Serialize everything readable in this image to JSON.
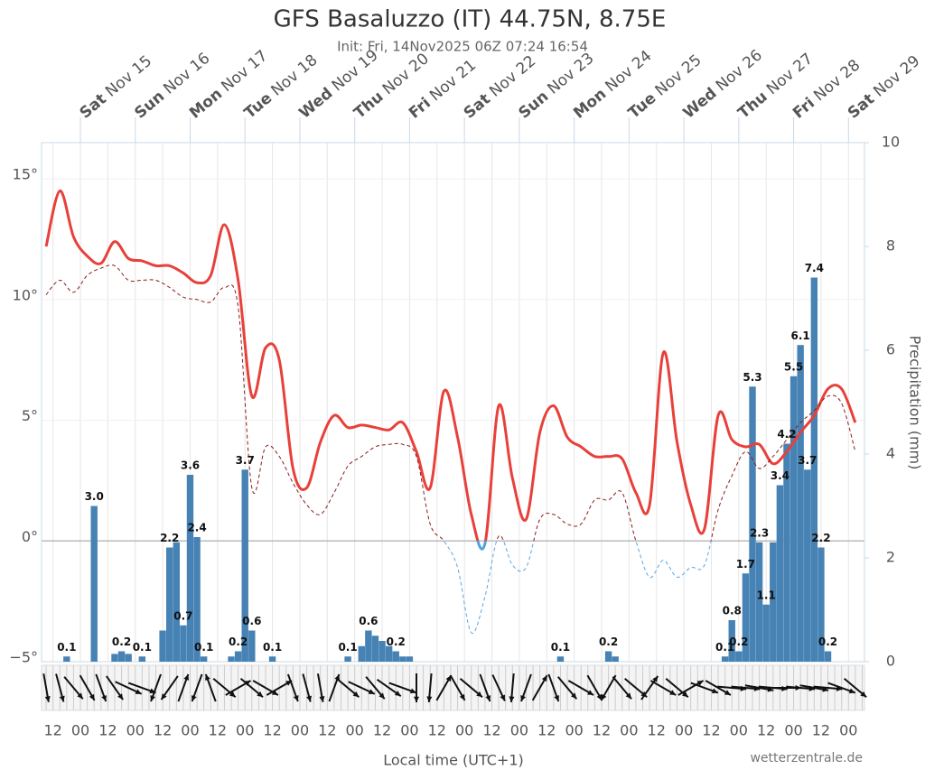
{
  "chart_data": {
    "type": "meteogram",
    "title": "GFS Basaluzzo (IT) 44.75N, 8.75E",
    "subtitle": "Init: Fri, 14Nov2025 06Z 07:24 16:54",
    "x_label": "Local time (UTC+1)",
    "y2_label": "Precipitation (mm)",
    "credit": "wetterzentrale.de",
    "xlim": [
      "2025-11-14T07:00",
      "2025-11-29T07:00"
    ],
    "ylim": [
      -5,
      16.5
    ],
    "y2lim": [
      0,
      10
    ],
    "grid": true,
    "yticks": [
      {
        "value": 15,
        "label": "15°"
      },
      {
        "value": 10,
        "label": "10°"
      },
      {
        "value": 5,
        "label": "5°"
      },
      {
        "value": 0,
        "label": "0°"
      },
      {
        "value": -5,
        "label": "−5°"
      }
    ],
    "y2ticks": [
      0,
      2,
      4,
      6,
      8,
      10
    ],
    "top_xticks": [
      {
        "value": "2025-11-15T00:00",
        "label": "Sat Nov 15"
      },
      {
        "value": "2025-11-16T00:00",
        "label": "Sun Nov 16"
      },
      {
        "value": "2025-11-17T00:00",
        "label": "Mon Nov 17"
      },
      {
        "value": "2025-11-18T00:00",
        "label": "Tue Nov 18"
      },
      {
        "value": "2025-11-19T00:00",
        "label": "Wed Nov 19"
      },
      {
        "value": "2025-11-20T00:00",
        "label": "Thu Nov 20"
      },
      {
        "value": "2025-11-21T00:00",
        "label": "Fri Nov 21"
      },
      {
        "value": "2025-11-22T00:00",
        "label": "Sat Nov 22"
      },
      {
        "value": "2025-11-23T00:00",
        "label": "Sun Nov 23"
      },
      {
        "value": "2025-11-24T00:00",
        "label": "Mon Nov 24"
      },
      {
        "value": "2025-11-25T00:00",
        "label": "Tue Nov 25"
      },
      {
        "value": "2025-11-26T00:00",
        "label": "Wed Nov 26"
      },
      {
        "value": "2025-11-27T00:00",
        "label": "Thu Nov 27"
      },
      {
        "value": "2025-11-28T00:00",
        "label": "Fri Nov 28"
      },
      {
        "value": "2025-11-29T00:00",
        "label": "Sat Nov 29"
      }
    ],
    "xticks": [
      {
        "value": "2025-11-14T12:00",
        "label": "12"
      },
      {
        "value": "2025-11-15T00:00",
        "label": "00"
      },
      {
        "value": "2025-11-15T12:00",
        "label": "12"
      },
      {
        "value": "2025-11-16T00:00",
        "label": "00"
      },
      {
        "value": "2025-11-16T12:00",
        "label": "12"
      },
      {
        "value": "2025-11-17T00:00",
        "label": "00"
      },
      {
        "value": "2025-11-17T12:00",
        "label": "12"
      },
      {
        "value": "2025-11-18T00:00",
        "label": "00"
      },
      {
        "value": "2025-11-18T12:00",
        "label": "12"
      },
      {
        "value": "2025-11-19T00:00",
        "label": "00"
      },
      {
        "value": "2025-11-19T12:00",
        "label": "12"
      },
      {
        "value": "2025-11-20T00:00",
        "label": "00"
      },
      {
        "value": "2025-11-20T12:00",
        "label": "12"
      },
      {
        "value": "2025-11-21T00:00",
        "label": "00"
      },
      {
        "value": "2025-11-21T12:00",
        "label": "12"
      },
      {
        "value": "2025-11-22T00:00",
        "label": "00"
      },
      {
        "value": "2025-11-22T12:00",
        "label": "12"
      },
      {
        "value": "2025-11-23T00:00",
        "label": "00"
      },
      {
        "value": "2025-11-23T12:00",
        "label": "12"
      },
      {
        "value": "2025-11-24T00:00",
        "label": "00"
      },
      {
        "value": "2025-11-24T12:00",
        "label": "12"
      },
      {
        "value": "2025-11-25T00:00",
        "label": "00"
      },
      {
        "value": "2025-11-25T12:00",
        "label": "12"
      },
      {
        "value": "2025-11-26T00:00",
        "label": "00"
      },
      {
        "value": "2025-11-26T12:00",
        "label": "12"
      },
      {
        "value": "2025-11-27T00:00",
        "label": "00"
      },
      {
        "value": "2025-11-27T12:00",
        "label": "12"
      },
      {
        "value": "2025-11-28T00:00",
        "label": "00"
      },
      {
        "value": "2025-11-28T12:00",
        "label": "12"
      },
      {
        "value": "2025-11-29T00:00",
        "label": "00"
      }
    ],
    "x": [
      "2025-11-14T09:00",
      "2025-11-14T15:00",
      "2025-11-14T21:00",
      "2025-11-15T03:00",
      "2025-11-15T09:00",
      "2025-11-15T15:00",
      "2025-11-15T21:00",
      "2025-11-16T03:00",
      "2025-11-16T09:00",
      "2025-11-16T15:00",
      "2025-11-16T21:00",
      "2025-11-17T03:00",
      "2025-11-17T09:00",
      "2025-11-17T15:00",
      "2025-11-17T21:00",
      "2025-11-18T03:00",
      "2025-11-18T09:00",
      "2025-11-18T15:00",
      "2025-11-18T21:00",
      "2025-11-19T03:00",
      "2025-11-19T09:00",
      "2025-11-19T15:00",
      "2025-11-19T21:00",
      "2025-11-20T03:00",
      "2025-11-20T09:00",
      "2025-11-20T15:00",
      "2025-11-20T21:00",
      "2025-11-21T03:00",
      "2025-11-21T09:00",
      "2025-11-21T15:00",
      "2025-11-21T21:00",
      "2025-11-22T03:00",
      "2025-11-22T09:00",
      "2025-11-22T15:00",
      "2025-11-22T21:00",
      "2025-11-23T03:00",
      "2025-11-23T09:00",
      "2025-11-23T15:00",
      "2025-11-23T21:00",
      "2025-11-24T03:00",
      "2025-11-24T09:00",
      "2025-11-24T15:00",
      "2025-11-24T21:00",
      "2025-11-25T03:00",
      "2025-11-25T09:00",
      "2025-11-25T15:00",
      "2025-11-25T21:00",
      "2025-11-26T03:00",
      "2025-11-26T09:00",
      "2025-11-26T15:00",
      "2025-11-26T21:00",
      "2025-11-27T03:00",
      "2025-11-27T09:00",
      "2025-11-27T15:00",
      "2025-11-27T21:00",
      "2025-11-28T03:00",
      "2025-11-28T09:00",
      "2025-11-28T15:00",
      "2025-11-28T21:00",
      "2025-11-29T03:00"
    ],
    "series": [
      {
        "color": "#e8403a",
        "below_zero_color": "#4da3e0",
        "width": 3,
        "values": [
          12.2,
          14.5,
          12.6,
          11.8,
          11.5,
          12.4,
          11.7,
          11.6,
          11.4,
          11.4,
          11.1,
          10.7,
          11.0,
          13.1,
          10.8,
          6.0,
          8.0,
          7.5,
          3.0,
          2.2,
          4.1,
          5.2,
          4.7,
          4.8,
          4.7,
          4.6,
          4.9,
          3.7,
          2.2,
          6.2,
          4.3,
          1.1,
          -0.1,
          5.6,
          2.6,
          0.9,
          4.5,
          5.6,
          4.3,
          3.9,
          3.5,
          3.5,
          3.4,
          2.0,
          1.5,
          7.8,
          4.1,
          1.5,
          0.5,
          5.2,
          4.2,
          3.9,
          4.0,
          3.2,
          3.7,
          4.5,
          5.2,
          6.3,
          6.3,
          4.9
        ]
      },
      {
        "color": "#8b1a1a",
        "below_zero_color": "#5aa5e0",
        "dashed": true,
        "width": 1,
        "values": [
          10.2,
          10.8,
          10.3,
          11.0,
          11.3,
          11.4,
          10.8,
          10.8,
          10.8,
          10.5,
          10.1,
          10.0,
          9.9,
          10.5,
          9.7,
          2.2,
          3.9,
          3.5,
          2.4,
          1.5,
          1.1,
          2.0,
          3.1,
          3.5,
          3.9,
          4.0,
          4.0,
          3.5,
          0.7,
          0.0,
          -1.1,
          -3.8,
          -2.3,
          0.2,
          -1.0,
          -1.1,
          0.9,
          1.1,
          0.7,
          0.7,
          1.7,
          1.7,
          2.0,
          0.0,
          -1.5,
          -0.8,
          -1.5,
          -1.1,
          -1.0,
          1.3,
          2.7,
          3.7,
          3.0,
          3.5,
          4.2,
          4.9,
          5.4,
          6.0,
          5.7,
          3.7
        ]
      },
      {
        "axis": "y2",
        "color": "#4682b4",
        "x": [
          "2025-11-14T18:00",
          "2025-11-15T06:00",
          "2025-11-15T15:00",
          "2025-11-15T18:00",
          "2025-11-15T21:00",
          "2025-11-16T03:00",
          "2025-11-16T12:00",
          "2025-11-16T15:00",
          "2025-11-16T18:00",
          "2025-11-16T21:00",
          "2025-11-17T00:00",
          "2025-11-17T03:00",
          "2025-11-17T06:00",
          "2025-11-17T18:00",
          "2025-11-17T21:00",
          "2025-11-18T00:00",
          "2025-11-18T03:00",
          "2025-11-18T12:00",
          "2025-11-19T21:00",
          "2025-11-20T03:00",
          "2025-11-20T06:00",
          "2025-11-20T09:00",
          "2025-11-20T12:00",
          "2025-11-20T15:00",
          "2025-11-20T18:00",
          "2025-11-20T21:00",
          "2025-11-21T00:00",
          "2025-11-23T18:00",
          "2025-11-24T15:00",
          "2025-11-24T18:00",
          "2025-11-26T18:00",
          "2025-11-26T21:00",
          "2025-11-27T00:00",
          "2025-11-27T03:00",
          "2025-11-27T06:00",
          "2025-11-27T09:00",
          "2025-11-27T12:00",
          "2025-11-27T15:00",
          "2025-11-27T18:00",
          "2025-11-27T21:00",
          "2025-11-28T00:00",
          "2025-11-28T03:00",
          "2025-11-28T06:00",
          "2025-11-28T09:00",
          "2025-11-28T12:00",
          "2025-11-28T15:00"
        ],
        "values": [
          0.1,
          3.0,
          0.15,
          0.2,
          0.15,
          0.1,
          0.6,
          2.2,
          2.3,
          0.7,
          3.6,
          2.4,
          0.1,
          0.1,
          0.2,
          3.7,
          0.6,
          0.1,
          0.1,
          0.3,
          0.6,
          0.5,
          0.4,
          0.3,
          0.2,
          0.1,
          0.1,
          0.1,
          0.2,
          0.1,
          0.1,
          0.8,
          0.2,
          1.7,
          5.3,
          2.3,
          1.1,
          2.3,
          3.4,
          4.2,
          5.5,
          6.1,
          3.7,
          7.4,
          2.2,
          0.2
        ],
        "value_labels": [
          "0.1",
          "3.0",
          null,
          "0.2",
          null,
          "0.1",
          null,
          "2.2",
          null,
          "0.7",
          "3.6",
          "2.4",
          "0.1",
          null,
          "0.2",
          "3.7",
          "0.6",
          "0.1",
          "0.1",
          null,
          "0.6",
          null,
          null,
          null,
          "0.2",
          null,
          null,
          "0.1",
          "0.2",
          null,
          "0.1",
          "0.8",
          "0.2",
          "1.7",
          "5.3",
          "2.3",
          "1.1",
          null,
          "3.4",
          "4.2",
          "5.5",
          "6.1",
          "3.7",
          "7.4",
          "2.2",
          "0.2"
        ]
      }
    ],
    "wind": {
      "direction": [
        170,
        165,
        140,
        150,
        160,
        145,
        115,
        110,
        200,
        215,
        20,
        200,
        340,
        130,
        60,
        130,
        120,
        60,
        160,
        165,
        170,
        20,
        130,
        115,
        140,
        125,
        110,
        180,
        185,
        30,
        150,
        130,
        160,
        155,
        185,
        200,
        30,
        160,
        140,
        120,
        150,
        210,
        140,
        130,
        35,
        120,
        130,
        60,
        110,
        120,
        95,
        95,
        100,
        95,
        90,
        95,
        100,
        95,
        110,
        130
      ]
    }
  }
}
